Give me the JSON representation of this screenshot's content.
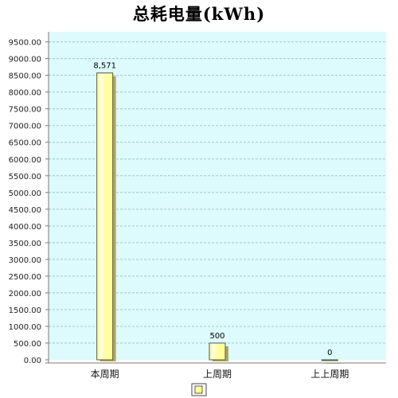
{
  "chart_data": {
    "type": "bar",
    "title": "总耗电量(kWh)",
    "categories": [
      "本周期",
      "上周期",
      "上上周期"
    ],
    "series": [
      {
        "values": [
          8571,
          500,
          0
        ]
      }
    ],
    "data_labels": [
      "8,571",
      "500",
      "0"
    ],
    "ylim": [
      0,
      9800
    ],
    "yticks": [
      0,
      500,
      1000,
      1500,
      2000,
      2500,
      3000,
      3500,
      4000,
      4500,
      5000,
      5500,
      6000,
      6500,
      7000,
      7500,
      8000,
      8500,
      9000,
      9500
    ],
    "ytick_labels": [
      "0.00",
      "500.00",
      "1000.00",
      "1500.00",
      "2000.00",
      "2500.00",
      "3000.00",
      "3500.00",
      "4000.00",
      "4500.00",
      "5000.00",
      "5500.00",
      "6000.00",
      "6500.00",
      "7000.00",
      "7500.00",
      "8000.00",
      "8500.00",
      "9000.00",
      "9500.00"
    ],
    "grid": true,
    "legend": "bottom-center",
    "colors": {
      "plot_background": "#ddfafc",
      "bar_fill": "#ffff9f",
      "bar_highlight": "#fffff0",
      "bar_shadow": "#b0a66a",
      "grid": "#9fc9c9",
      "axis": "#7a7a7a"
    }
  }
}
